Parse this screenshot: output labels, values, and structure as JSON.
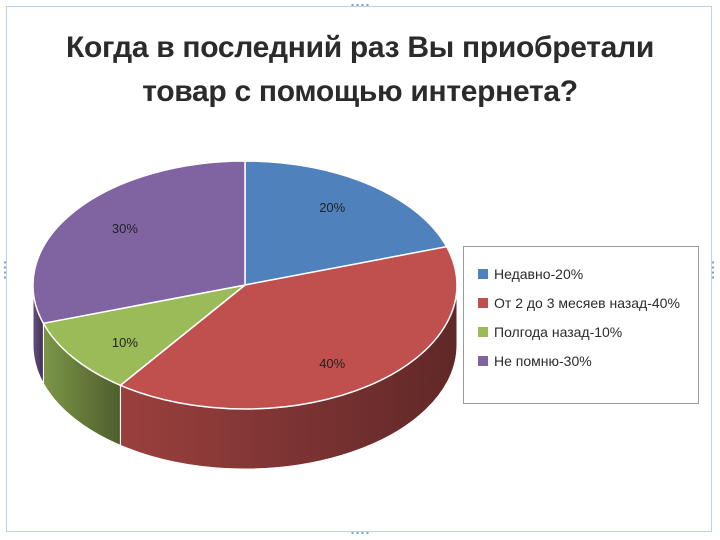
{
  "chart_data": {
    "type": "pie",
    "title_lines": [
      "Когда в последний раз Вы приобретали",
      "товар с помощью интернета?"
    ],
    "slices": [
      {
        "label": "Недавно-20%",
        "value": 20,
        "data_label": "20%",
        "color": "#4f81bd"
      },
      {
        "label": "От 2 до 3 месяев назад-40%",
        "value": 40,
        "data_label": "40%",
        "color": "#c0504d"
      },
      {
        "label": "Полгода назад-10%",
        "value": 10,
        "data_label": "10%",
        "color": "#9bbb59"
      },
      {
        "label": "Не помню-30%",
        "value": 30,
        "data_label": "30%",
        "color": "#8064a2"
      }
    ],
    "legend_position": "right",
    "style": "3d"
  }
}
